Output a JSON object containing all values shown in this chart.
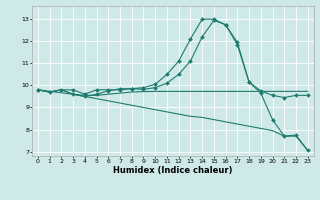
{
  "xlabel": "Humidex (Indice chaleur)",
  "bg_color": "#cfe9e9",
  "grid_color": "#ffffff",
  "line_color": "#1e7b6e",
  "xlim": [
    -0.5,
    23.5
  ],
  "ylim": [
    6.8,
    13.6
  ],
  "yticks": [
    7,
    8,
    9,
    10,
    11,
    12,
    13
  ],
  "xticks": [
    0,
    1,
    2,
    3,
    4,
    5,
    6,
    7,
    8,
    9,
    10,
    11,
    12,
    13,
    14,
    15,
    16,
    17,
    18,
    19,
    20,
    21,
    22,
    23
  ],
  "lines": [
    {
      "x": [
        0,
        1,
        2,
        3,
        4,
        5,
        6,
        7,
        8,
        9,
        10,
        11,
        12,
        13,
        14,
        15,
        16,
        17,
        18,
        19,
        20,
        21,
        22,
        23
      ],
      "y": [
        9.8,
        9.7,
        9.8,
        9.8,
        9.6,
        9.8,
        9.8,
        9.8,
        9.85,
        9.9,
        10.05,
        10.5,
        11.1,
        12.1,
        13.0,
        13.0,
        12.75,
        11.95,
        10.15,
        9.75,
        9.55,
        9.45,
        9.55,
        9.55
      ],
      "has_marker": true
    },
    {
      "x": [
        0,
        1,
        2,
        3,
        4,
        5,
        6,
        7,
        8,
        9,
        10,
        11,
        12,
        13,
        14,
        15,
        16,
        17,
        18,
        19,
        20,
        21,
        22,
        23
      ],
      "y": [
        9.8,
        9.7,
        9.8,
        9.6,
        9.55,
        9.55,
        9.6,
        9.65,
        9.7,
        9.72,
        9.73,
        9.73,
        9.73,
        9.73,
        9.73,
        9.73,
        9.73,
        9.73,
        9.73,
        9.73,
        9.73,
        9.73,
        9.73,
        9.73
      ],
      "has_marker": false
    },
    {
      "x": [
        0,
        1,
        2,
        3,
        4,
        5,
        6,
        7,
        8,
        9,
        10,
        11,
        12,
        13,
        14,
        15,
        16,
        17,
        18,
        19,
        20,
        21,
        22,
        23
      ],
      "y": [
        9.8,
        9.7,
        9.8,
        9.6,
        9.5,
        9.4,
        9.3,
        9.2,
        9.1,
        9.0,
        8.9,
        8.8,
        8.7,
        8.6,
        8.55,
        8.45,
        8.35,
        8.25,
        8.15,
        8.05,
        7.95,
        7.7,
        7.7,
        7.05
      ],
      "has_marker": false
    },
    {
      "x": [
        0,
        3,
        4,
        5,
        6,
        7,
        8,
        9,
        10,
        11,
        12,
        13,
        14,
        15,
        16,
        17,
        18,
        19,
        20,
        21,
        22,
        23
      ],
      "y": [
        9.8,
        9.6,
        9.5,
        9.6,
        9.75,
        9.85,
        9.85,
        9.82,
        9.9,
        10.1,
        10.5,
        11.1,
        12.2,
        12.95,
        12.75,
        11.85,
        10.15,
        9.65,
        8.45,
        7.7,
        7.75,
        7.05
      ],
      "has_marker": true
    }
  ]
}
